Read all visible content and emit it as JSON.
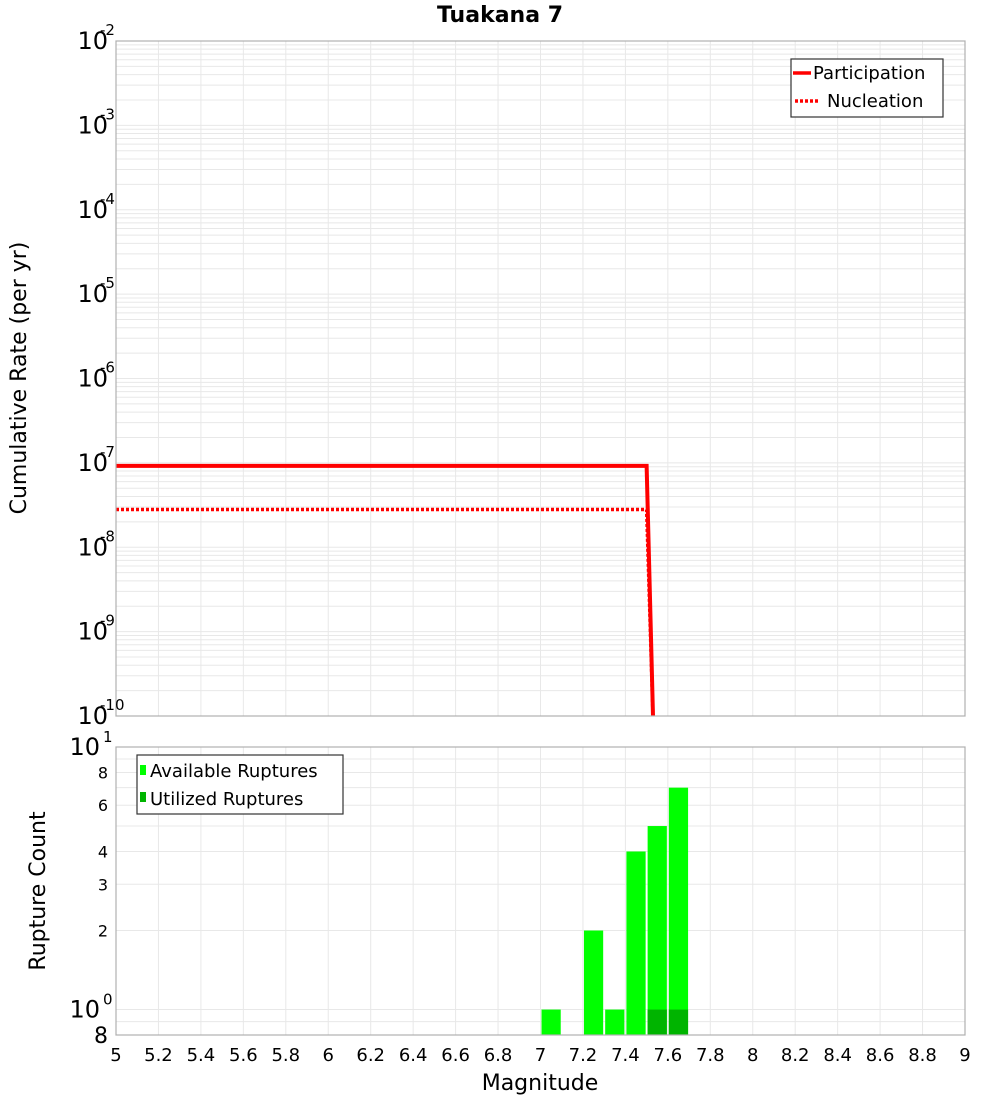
{
  "chart_data": [
    {
      "type": "line",
      "title": "Tuakana 7",
      "xlabel": "",
      "ylabel": "Cumulative Rate (per yr)",
      "yscale": "log",
      "xlim": [
        5,
        9
      ],
      "ylim": [
        1e-10,
        0.01
      ],
      "grid": true,
      "legend_position": "upper right",
      "y_ticks": [
        {
          "base": "10",
          "exp": "-2",
          "value": 0.01
        },
        {
          "base": "10",
          "exp": "-3",
          "value": 0.001
        },
        {
          "base": "10",
          "exp": "-4",
          "value": 0.0001
        },
        {
          "base": "10",
          "exp": "-5",
          "value": 1e-05
        },
        {
          "base": "10",
          "exp": "-6",
          "value": 1e-06
        },
        {
          "base": "10",
          "exp": "-7",
          "value": 1e-07
        },
        {
          "base": "10",
          "exp": "-8",
          "value": 1e-08
        },
        {
          "base": "10",
          "exp": "-9",
          "value": 1e-09
        },
        {
          "base": "10",
          "exp": "-10",
          "value": 1e-10
        }
      ],
      "series": [
        {
          "name": "Participation",
          "style": "solid",
          "color": "#ff0000",
          "x": [
            5.0,
            7.5,
            7.53
          ],
          "y": [
            9.2e-08,
            9.2e-08,
            1e-10
          ]
        },
        {
          "name": "Nucleation",
          "style": "dotted",
          "color": "#ff0000",
          "x": [
            5.0,
            7.5,
            7.53
          ],
          "y": [
            2.8e-08,
            2.8e-08,
            1e-10
          ]
        }
      ]
    },
    {
      "type": "bar",
      "title": "",
      "xlabel": "Magnitude",
      "ylabel": "Rupture Count",
      "yscale": "log",
      "xlim": [
        5,
        9
      ],
      "ylim": [
        0.8,
        10
      ],
      "grid": true,
      "legend_position": "upper left",
      "x_ticks": [
        "5",
        "5.2",
        "5.4",
        "5.6",
        "5.8",
        "6",
        "6.2",
        "6.4",
        "6.6",
        "6.8",
        "7",
        "7.2",
        "7.4",
        "7.6",
        "7.8",
        "8",
        "8.2",
        "8.4",
        "8.6",
        "8.8",
        "9"
      ],
      "y_ticks": [
        {
          "label": "10",
          "exp": "1",
          "value": 10,
          "major": true
        },
        {
          "label": "8",
          "value": 8,
          "major": false
        },
        {
          "label": "6",
          "value": 6,
          "major": false
        },
        {
          "label": "4",
          "value": 4,
          "major": false
        },
        {
          "label": "3",
          "value": 3,
          "major": false
        },
        {
          "label": "2",
          "value": 2,
          "major": false
        },
        {
          "label": "10",
          "exp": "0",
          "value": 1,
          "major": true
        },
        {
          "label": "8",
          "value": 0.8,
          "major": true
        }
      ],
      "bin_width": 0.1,
      "series": [
        {
          "name": "Available Ruptures",
          "color": "#00ff00",
          "x": [
            7.05,
            7.25,
            7.35,
            7.45,
            7.55,
            7.65
          ],
          "values": [
            1,
            2,
            1,
            4,
            5,
            7
          ]
        },
        {
          "name": "Utilized Ruptures",
          "color": "#00b400",
          "x": [
            7.55,
            7.65
          ],
          "values": [
            1,
            1
          ]
        }
      ]
    }
  ],
  "labels": {
    "title": "Tuakana 7",
    "top_ylabel": "Cumulative Rate (per yr)",
    "bottom_ylabel": "Rupture Count",
    "xlabel": "Magnitude",
    "legend_top": [
      "Participation",
      "Nucleation"
    ],
    "legend_bottom": [
      "Available Ruptures",
      "Utilized Ruptures"
    ]
  }
}
